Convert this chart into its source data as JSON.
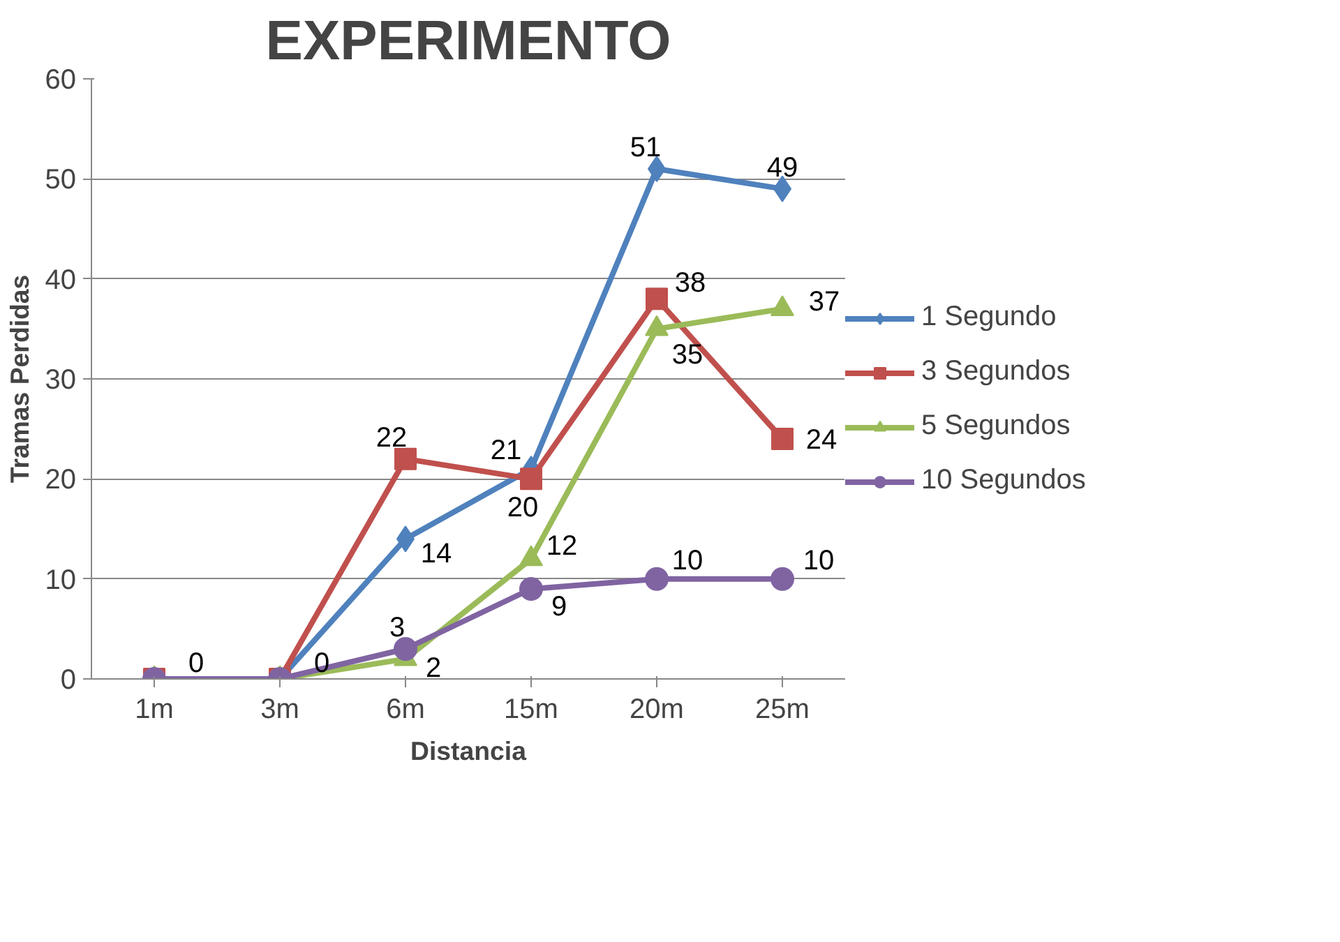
{
  "chart_data": {
    "type": "line",
    "title": "EXPERIMENTO",
    "xlabel": "Distancia",
    "ylabel": "Tramas Perdidas",
    "categories": [
      "1m",
      "3m",
      "6m",
      "15m",
      "20m",
      "25m"
    ],
    "ylim": [
      0,
      60
    ],
    "yticks": [
      0,
      10,
      20,
      30,
      40,
      50,
      60
    ],
    "grid": "y",
    "legend": "right",
    "line_style": "solid",
    "series": [
      {
        "name": "1 Segundo",
        "color": "#4f81bd",
        "marker": "diamond",
        "values": [
          0,
          0,
          14,
          21,
          51,
          49
        ],
        "value_labels": [
          null,
          null,
          "14",
          "21",
          "51",
          "49"
        ]
      },
      {
        "name": "3 Segundos",
        "color": "#c0504d",
        "marker": "square",
        "values": [
          0,
          0,
          22,
          20,
          38,
          24
        ],
        "value_labels": [
          null,
          null,
          "22",
          "20",
          "38",
          "24"
        ]
      },
      {
        "name": "5 Segundos",
        "color": "#9bbb59",
        "marker": "triangle",
        "values": [
          0,
          0,
          2,
          12,
          35,
          37
        ],
        "value_labels": [
          null,
          null,
          "2",
          "12",
          "35",
          "37"
        ]
      },
      {
        "name": "10 Segundos",
        "color": "#8064a2",
        "marker": "circle",
        "values": [
          0,
          0,
          3,
          9,
          10,
          10
        ],
        "value_labels": [
          "0",
          "0",
          "3",
          "9",
          "10",
          "10"
        ]
      }
    ]
  }
}
